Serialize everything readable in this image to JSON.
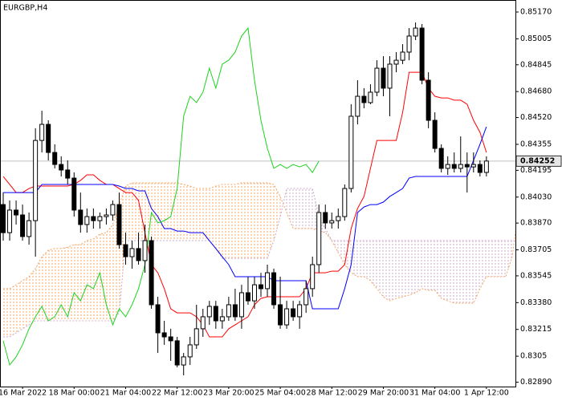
{
  "chart_data": {
    "type": "candlestick",
    "title": "EURGBP,H4",
    "categories": [
      null,
      null,
      null,
      "16 Mar 2022",
      null,
      null,
      null,
      null,
      null,
      null,
      null,
      "18 Mar 00:00",
      null,
      null,
      null,
      null,
      null,
      null,
      null,
      "21 Mar 04:00",
      null,
      null,
      null,
      null,
      null,
      null,
      null,
      "22 Mar 12:00",
      null,
      null,
      null,
      null,
      null,
      null,
      null,
      "23 Mar 20:00",
      null,
      null,
      null,
      null,
      null,
      null,
      null,
      "25 Mar 04:00",
      null,
      null,
      null,
      null,
      null,
      null,
      null,
      "28 Mar 12:00",
      null,
      null,
      null,
      null,
      null,
      null,
      null,
      "29 Mar 20:00",
      null,
      null,
      null,
      null,
      null,
      null,
      null,
      "31 Mar 04:00",
      null,
      null,
      null,
      null,
      null,
      null,
      null,
      "1 Apr 12:00",
      null,
      null,
      null,
      null,
      null
    ],
    "open": [
      0.83984,
      0.83811,
      0.8395,
      0.8392,
      0.83787,
      0.83885,
      0.84379,
      0.84478,
      0.84305,
      0.84231,
      0.84197,
      0.84147,
      0.8395,
      0.83861,
      0.8391,
      0.83885,
      0.8391,
      0.8392,
      0.83984,
      0.83737,
      0.83663,
      0.83713,
      0.83639,
      0.83762,
      0.83367,
      0.83194,
      0.83169,
      0.83145,
      0.82996,
      0.83046,
      0.8312,
      0.83219,
      0.83293,
      0.83357,
      0.83268,
      0.83293,
      0.83367,
      0.83293,
      0.83441,
      0.83391,
      0.8349,
      0.83466,
      0.83564,
      0.83367,
      0.83243,
      0.83342,
      0.83293,
      0.83367,
      0.83466,
      0.83614,
      0.83935,
      0.83871,
      0.83885,
      0.8391,
      0.84083,
      0.84528,
      0.84651,
      0.84612,
      0.84676,
      0.84824,
      0.84701,
      0.84849,
      0.84873,
      0.84923,
      0.85022,
      0.85071,
      0.8475,
      0.84503,
      0.8433,
      0.84207,
      0.84231,
      0.84207,
      0.84231,
      0.84216,
      0.84231,
      0.84182,
      null,
      null,
      null,
      null,
      null
    ],
    "high": [
      0.84058,
      0.84009,
      0.84009,
      0.83984,
      0.83935,
      0.84454,
      0.84562,
      0.84503,
      0.84355,
      0.84281,
      0.84256,
      0.84182,
      0.84058,
      0.8396,
      0.8396,
      0.83935,
      0.8396,
      0.84009,
      0.84058,
      0.83811,
      0.83762,
      0.83811,
      0.83861,
      0.83787,
      0.83416,
      0.83268,
      0.83219,
      0.83169,
      0.8307,
      0.83169,
      0.83367,
      0.83342,
      0.83391,
      0.83391,
      0.83342,
      0.83416,
      0.83466,
      0.8349,
      0.8354,
      0.8354,
      0.83564,
      0.83614,
      0.83589,
      0.8354,
      0.83391,
      0.83391,
      0.83391,
      0.83515,
      0.83663,
      0.83984,
      0.83984,
      0.83935,
      0.8396,
      0.84108,
      0.84602,
      0.8475,
      0.84701,
      0.84725,
      0.84873,
      0.84898,
      0.84898,
      0.84923,
      0.84972,
      0.85071,
      0.85106,
      0.85096,
      0.84799,
      0.84552,
      0.84355,
      0.84281,
      0.84305,
      0.84404,
      0.84305,
      0.84305,
      0.84256,
      0.84281,
      null,
      null,
      null,
      null,
      null
    ],
    "low": [
      0.83762,
      0.83762,
      0.83861,
      0.83762,
      0.83737,
      0.83663,
      0.84305,
      0.84256,
      0.84207,
      0.84157,
      0.84108,
      0.8391,
      0.83811,
      0.83811,
      0.83836,
      0.83836,
      0.83861,
      0.83885,
      0.83713,
      0.83614,
      0.83589,
      0.83614,
      0.83564,
      0.83342,
      0.8307,
      0.8312,
      0.83021,
      0.82981,
      0.82932,
      0.82996,
      0.83095,
      0.83169,
      0.83243,
      0.83219,
      0.83219,
      0.83268,
      0.83268,
      0.83219,
      0.83367,
      0.83342,
      0.83416,
      0.83416,
      0.83342,
      0.83219,
      0.83219,
      0.83268,
      0.83219,
      0.83317,
      0.83416,
      0.83564,
      0.83836,
      0.83836,
      0.83836,
      0.83885,
      0.84058,
      0.84478,
      0.84577,
      0.84602,
      0.84651,
      0.84651,
      0.84528,
      0.84799,
      0.84849,
      0.84873,
      0.84997,
      0.84725,
      0.84454,
      0.84305,
      0.84182,
      0.84167,
      0.84182,
      0.84182,
      0.84058,
      0.84182,
      0.84157,
      0.84157,
      null,
      null,
      null,
      null,
      null
    ],
    "close": [
      0.83811,
      0.8395,
      0.8392,
      0.83787,
      0.83885,
      0.84379,
      0.84478,
      0.84305,
      0.84231,
      0.84197,
      0.84147,
      0.8395,
      0.83861,
      0.8391,
      0.83885,
      0.8391,
      0.8392,
      0.83984,
      0.83737,
      0.83663,
      0.83713,
      0.83639,
      0.83762,
      0.83367,
      0.83194,
      0.83169,
      0.83145,
      0.82996,
      0.83046,
      0.8312,
      0.83219,
      0.83293,
      0.83357,
      0.83268,
      0.83293,
      0.83367,
      0.83293,
      0.83441,
      0.83391,
      0.8349,
      0.83466,
      0.83564,
      0.83367,
      0.83243,
      0.83342,
      0.83293,
      0.83367,
      0.83466,
      0.83614,
      0.83935,
      0.83871,
      0.83885,
      0.8391,
      0.84083,
      0.84528,
      0.84651,
      0.84612,
      0.84676,
      0.84824,
      0.84701,
      0.84849,
      0.84873,
      0.84923,
      0.85022,
      0.85071,
      0.8475,
      0.84503,
      0.8433,
      0.84207,
      0.84231,
      0.84207,
      0.84231,
      0.84216,
      0.84231,
      0.84182,
      0.84252,
      null,
      null,
      null,
      null,
      null
    ],
    "up_color": "#ffffff",
    "down_color": "#000000",
    "wick_color": "#000000",
    "lines": [
      {
        "color": "#ff0000",
        "values": [
          0.84157,
          0.84108,
          0.84058,
          0.84058,
          0.84083,
          0.84098,
          0.84098,
          0.84098,
          0.84098,
          0.84098,
          0.84098,
          0.84108,
          0.84133,
          0.84167,
          0.84167,
          0.84133,
          0.84108,
          0.84108,
          0.84083,
          0.84058,
          0.84058,
          0.84009,
          0.83811,
          0.83614,
          0.83564,
          0.83466,
          0.83342,
          0.83317,
          0.83317,
          0.83317,
          0.83293,
          0.83243,
          0.83169,
          0.83169,
          0.83169,
          0.83219,
          0.83243,
          0.83268,
          0.83293,
          0.83367,
          0.83406,
          0.83416,
          0.83416,
          0.83416,
          0.83416,
          0.83416,
          0.83416,
          0.83466,
          0.83564,
          0.83564,
          0.83564,
          0.83574,
          0.83574,
          0.83614,
          0.83836,
          0.8396,
          0.84034,
          0.84207,
          0.84379,
          0.84379,
          0.84379,
          0.84379,
          0.84552,
          0.84799,
          0.84799,
          0.84799,
          0.84701,
          0.84651,
          0.84641,
          0.84641,
          0.84627,
          0.84627,
          0.84602,
          0.84503,
          0.84429,
          0.84305,
          null,
          null,
          null,
          null,
          null
        ]
      },
      {
        "color": "#0000ff",
        "values": [
          0.84058,
          0.84058,
          0.84058,
          0.84058,
          0.84058,
          0.84058,
          0.84108,
          0.84108,
          0.84108,
          0.84108,
          0.84108,
          0.84108,
          0.84108,
          0.84108,
          0.84108,
          0.84108,
          0.84108,
          0.84108,
          0.84098,
          0.84083,
          0.84083,
          0.84068,
          0.84068,
          0.8396,
          0.8391,
          0.83836,
          0.83836,
          0.83821,
          0.83821,
          0.83811,
          0.83811,
          0.83811,
          0.83762,
          0.83713,
          0.83663,
          0.83614,
          0.8354,
          0.8354,
          0.8354,
          0.8354,
          0.8354,
          0.8354,
          0.83515,
          0.83515,
          0.83515,
          0.83515,
          0.83515,
          0.83515,
          0.83342,
          0.83342,
          0.83342,
          0.83342,
          0.83342,
          0.83466,
          0.83614,
          0.83935,
          0.83969,
          0.83984,
          0.83984,
          0.83999,
          0.84034,
          0.84058,
          0.84083,
          0.84147,
          0.84157,
          0.84157,
          0.84157,
          0.84157,
          0.84157,
          0.84157,
          0.84157,
          0.84157,
          0.84157,
          0.84256,
          0.84355,
          0.84463,
          null,
          null,
          null,
          null,
          null
        ]
      },
      {
        "color": "#1ed21e",
        "values": [
          0.83145,
          0.82996,
          0.83046,
          0.8312,
          0.83219,
          0.83293,
          0.83357,
          0.83268,
          0.83293,
          0.83367,
          0.83293,
          0.83441,
          0.83391,
          0.8349,
          0.83466,
          0.83564,
          0.83367,
          0.83243,
          0.83342,
          0.83293,
          0.83367,
          0.83466,
          0.83614,
          0.83935,
          0.83871,
          0.83885,
          0.8391,
          0.84083,
          0.84528,
          0.84651,
          0.84612,
          0.84676,
          0.84824,
          0.84701,
          0.84849,
          0.84873,
          0.84923,
          0.85022,
          0.85071,
          0.8475,
          0.84503,
          0.8433,
          0.84207,
          0.84231,
          0.84207,
          0.84231,
          0.84216,
          0.84231,
          0.84182,
          0.84252,
          null,
          null,
          null,
          null,
          null,
          null,
          null,
          null,
          null,
          null,
          null,
          null,
          null,
          null,
          null,
          null,
          null,
          null,
          null,
          null,
          null,
          null,
          null,
          null,
          null,
          null,
          null,
          null,
          null,
          null,
          null
        ]
      }
    ],
    "cloud": {
      "span_a": {
        "color": "#f4a460",
        "values": [
          0.83466,
          0.83466,
          0.8349,
          0.83515,
          0.8354,
          0.83589,
          0.83663,
          0.83703,
          0.83713,
          0.83713,
          0.83722,
          0.83737,
          0.83737,
          0.83762,
          0.83772,
          0.83802,
          0.83811,
          0.83861,
          0.83984,
          0.84098,
          0.84118,
          0.84118,
          0.84118,
          0.84118,
          0.84118,
          0.84118,
          0.84118,
          0.84118,
          0.84108,
          0.84098,
          0.84083,
          0.84083,
          0.84083,
          0.84098,
          0.84108,
          0.84108,
          0.84108,
          0.84118,
          0.84118,
          0.84118,
          0.84118,
          0.84118,
          0.84108,
          0.84034,
          0.83935,
          0.83836,
          0.83836,
          0.83836,
          0.83836,
          0.83821,
          0.83811,
          0.83762,
          0.83688,
          0.83614,
          0.83564,
          0.8354,
          0.8354,
          0.83515,
          0.83466,
          0.83416,
          0.83391,
          0.83406,
          0.83416,
          0.83426,
          0.83441,
          0.83466,
          0.83456,
          0.83456,
          0.83406,
          0.83391,
          0.83377,
          0.83377,
          0.83377,
          0.83377,
          0.83466,
          0.8354,
          0.8354,
          0.8354,
          0.8354,
          0.83663,
          0.8396
        ]
      },
      "span_b": {
        "color": "#c8aac8",
        "values": [
          0.83169,
          0.83169,
          0.83194,
          0.83219,
          0.83243,
          0.83268,
          0.83268,
          0.83268,
          0.83268,
          0.83268,
          0.83268,
          0.83268,
          0.83268,
          0.83268,
          0.83268,
          0.83268,
          0.83268,
          0.83268,
          0.83317,
          0.83762,
          0.83762,
          0.83762,
          0.83762,
          0.83762,
          0.83762,
          0.83762,
          0.83762,
          0.83762,
          0.83762,
          0.83762,
          0.83762,
          0.83762,
          0.83762,
          0.83713,
          0.83653,
          0.83653,
          0.83653,
          0.83653,
          0.83653,
          0.83653,
          0.83653,
          0.83653,
          0.83762,
          0.8391,
          0.84083,
          0.84083,
          0.84083,
          0.84083,
          0.84083,
          0.8391,
          0.83836,
          0.83762,
          0.83762,
          0.83762,
          0.83762,
          0.83762,
          0.83762,
          0.83762,
          0.83762,
          0.83762,
          0.83762,
          0.83762,
          0.83762,
          0.83762,
          0.83762,
          0.83762,
          0.83762,
          0.83762,
          0.83762,
          0.83762,
          0.83762,
          0.83762,
          0.83762,
          0.83762,
          0.83762,
          0.83762,
          0.83762,
          0.83762,
          0.83762,
          0.83762,
          0.83762
        ]
      }
    },
    "last_price": 0.84252,
    "price_line_color": "#c0c0c0",
    "ylim": [
      0.82863,
      0.85244
    ],
    "yticks": [
      {
        "value": 0.8517,
        "label": "0.85170"
      },
      0.85005,
      0.84845,
      {
        "value": 0.8468,
        "label": "0.84680"
      },
      {
        "value": 0.8452,
        "label": "0.84520"
      },
      0.84355,
      0.84195,
      {
        "value": 0.8403,
        "label": "0.84030"
      },
      {
        "value": 0.8387,
        "label": "0.83870"
      },
      0.83705,
      0.83545,
      {
        "value": 0.8338,
        "label": "0.83380"
      },
      0.83215,
      0.8305,
      {
        "value": 0.8289,
        "label": "0.82890"
      }
    ],
    "grid": false
  }
}
